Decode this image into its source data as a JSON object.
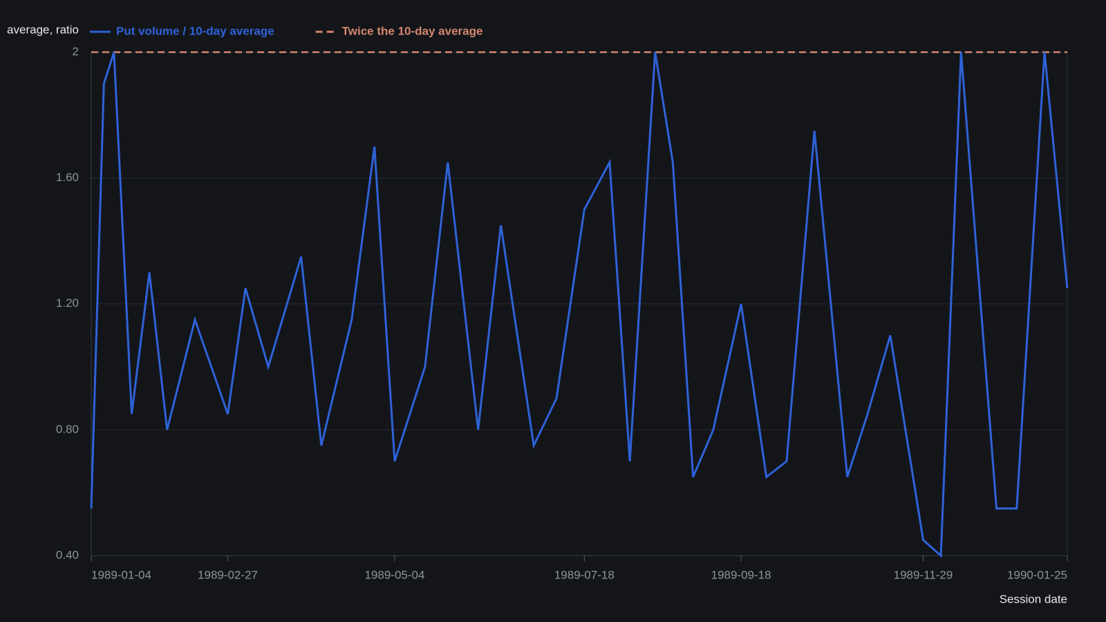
{
  "chart_data": {
    "type": "line",
    "y_label": "average, ratio",
    "x_label": "Session date",
    "x": [
      "1989-01-04",
      "1989-01-09",
      "1989-01-13",
      "1989-01-20",
      "1989-01-27",
      "1989-02-03",
      "1989-02-14",
      "1989-02-27",
      "1989-03-06",
      "1989-03-15",
      "1989-03-28",
      "1989-04-05",
      "1989-04-17",
      "1989-04-26",
      "1989-05-04",
      "1989-05-16",
      "1989-05-25",
      "1989-06-06",
      "1989-06-15",
      "1989-06-28",
      "1989-07-07",
      "1989-07-18",
      "1989-07-28",
      "1989-08-05",
      "1989-08-15",
      "1989-08-22",
      "1989-08-30",
      "1989-09-07",
      "1989-09-18",
      "1989-09-28",
      "1989-10-06",
      "1989-10-17",
      "1989-10-30",
      "1989-11-07",
      "1989-11-16",
      "1989-11-29",
      "1989-12-06",
      "1989-12-14",
      "1989-12-28",
      "1990-01-05",
      "1990-01-16",
      "1990-01-25"
    ],
    "series": [
      {
        "name": "Put volume / 10-day average",
        "color": "#2f62d8",
        "values": [
          0.55,
          1.9,
          2,
          0.85,
          1.3,
          0.8,
          1.15,
          0.85,
          1.25,
          1,
          1.35,
          0.75,
          1.15,
          1.7,
          0.7,
          1,
          1.65,
          0.8,
          1.45,
          0.75,
          0.9,
          1.5,
          1.65,
          0.7,
          2,
          1.65,
          0.65,
          0.8,
          1.2,
          0.65,
          0.7,
          1.75,
          0.65,
          0.85,
          1.1,
          0.45,
          0.4,
          2,
          0.55,
          0.55,
          2,
          1.25
        ]
      }
    ],
    "reference_lines": [
      {
        "name": "Twice the 10-day average",
        "value": 2,
        "color": "#d4876f",
        "dashed": true
      }
    ],
    "xlim": [
      "1989-01-04",
      "1990-01-25"
    ],
    "xticks": [
      "1989-01-04",
      "1989-02-27",
      "1989-05-04",
      "1989-07-18",
      "1989-09-18",
      "1989-11-29",
      "1990-01-25"
    ],
    "ylim": [
      0.4,
      2
    ],
    "yticks": [
      {
        "value": 0.4,
        "label": "0.40"
      },
      {
        "value": 0.8,
        "label": "0.80"
      },
      {
        "value": 1.2,
        "label": "1.20"
      },
      {
        "value": 1.6,
        "label": "1.60"
      },
      2
    ],
    "grid": true,
    "legend": "top"
  }
}
